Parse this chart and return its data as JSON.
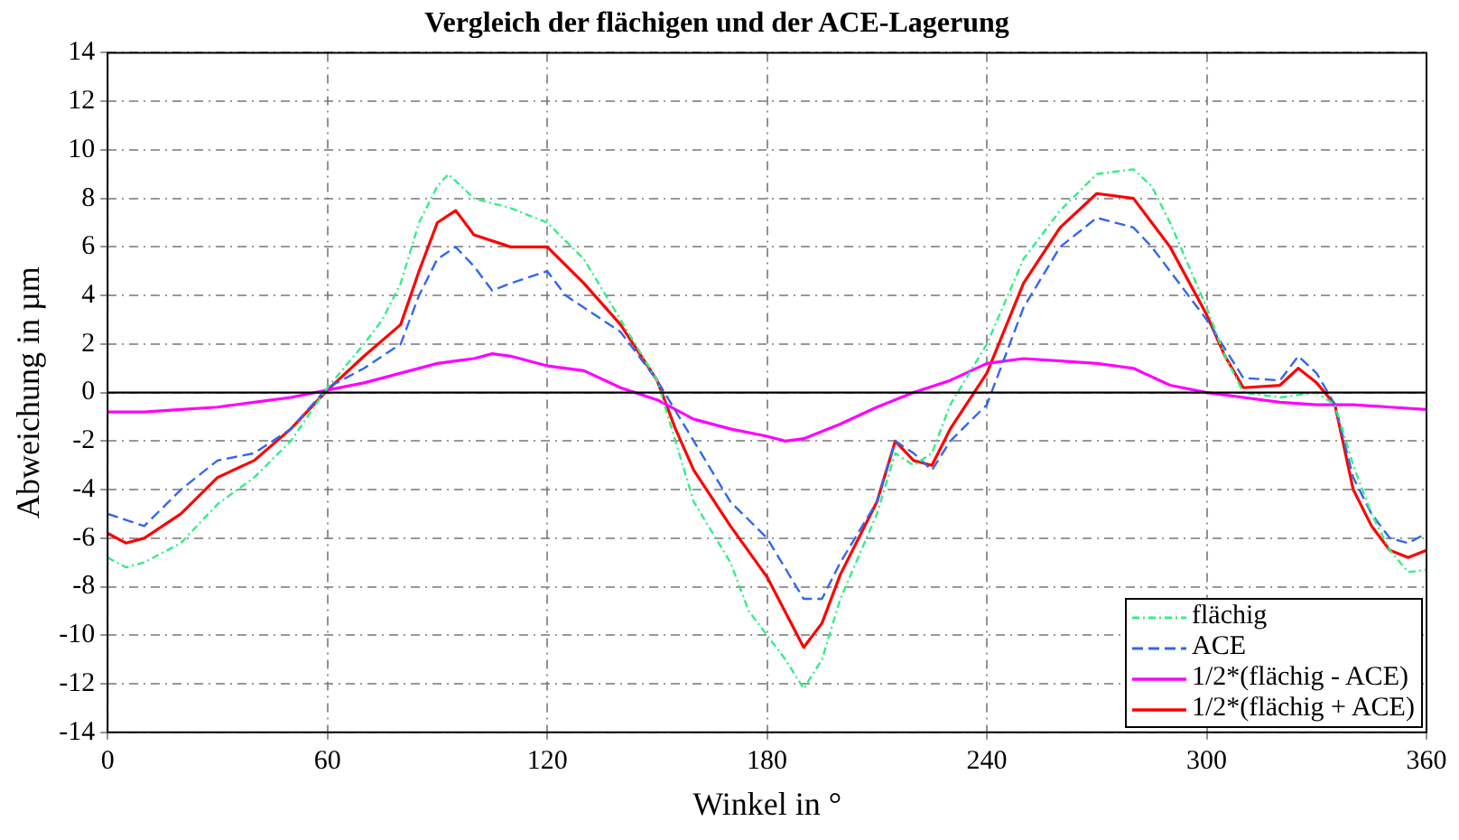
{
  "chart_data": {
    "type": "line",
    "title": "Vergleich der flächigen und der ACE-Lagerung",
    "xlabel": "Winkel in °",
    "ylabel": "Abweichung in µm",
    "xlim": [
      0,
      360
    ],
    "xticks": [
      0,
      60,
      120,
      180,
      240,
      300,
      360
    ],
    "ylim": [
      -14,
      14
    ],
    "yticks": [
      -14,
      -12,
      -10,
      -8,
      -6,
      -4,
      -2,
      0,
      2,
      4,
      6,
      8,
      10,
      12,
      14
    ],
    "grid": true,
    "legend": "bottom right",
    "marker": "none",
    "ref_lines": [
      {
        "axis": "y",
        "value": 0,
        "color": "#000000"
      }
    ],
    "series": [
      {
        "name": "flächig",
        "color": "#33ee88",
        "line_style": "dotted",
        "x": [
          0,
          5,
          10,
          20,
          30,
          40,
          50,
          60,
          70,
          75,
          80,
          85,
          90,
          93,
          100,
          110,
          120,
          130,
          140,
          150,
          155,
          160,
          170,
          175,
          180,
          185,
          190,
          195,
          200,
          210,
          215,
          220,
          225,
          230,
          240,
          250,
          260,
          270,
          280,
          285,
          290,
          300,
          305,
          310,
          320,
          330,
          335,
          340,
          345,
          350,
          355,
          360
        ],
        "values": [
          -6.8,
          -7.2,
          -7.0,
          -6.2,
          -4.6,
          -3.5,
          -2.0,
          0.2,
          2.0,
          3.0,
          4.5,
          7.0,
          8.5,
          9.0,
          8.0,
          7.6,
          7.0,
          5.5,
          3.0,
          0.5,
          -2.0,
          -4.5,
          -7.0,
          -9.0,
          -10.0,
          -11.0,
          -12.2,
          -11.0,
          -8.5,
          -5.0,
          -2.5,
          -3.0,
          -2.5,
          -0.5,
          2.0,
          5.5,
          7.5,
          9.0,
          9.2,
          8.5,
          7.0,
          3.5,
          1.5,
          0.0,
          -0.2,
          0.0,
          -0.5,
          -3.0,
          -5.0,
          -6.5,
          -7.4,
          -7.3
        ]
      },
      {
        "name": "ACE",
        "color": "#3366ee",
        "line_style": "dashed",
        "x": [
          0,
          10,
          20,
          30,
          40,
          50,
          60,
          70,
          80,
          85,
          90,
          95,
          100,
          105,
          110,
          120,
          125,
          130,
          140,
          145,
          150,
          160,
          170,
          180,
          190,
          195,
          200,
          210,
          215,
          220,
          225,
          230,
          240,
          250,
          260,
          270,
          280,
          285,
          290,
          300,
          305,
          310,
          320,
          325,
          330,
          335,
          340,
          345,
          350,
          355,
          360
        ],
        "values": [
          -5.0,
          -5.5,
          -4.0,
          -2.8,
          -2.5,
          -1.5,
          0.2,
          1.0,
          2.0,
          4.0,
          5.5,
          6.0,
          5.2,
          4.2,
          4.5,
          5.0,
          4.0,
          3.5,
          2.5,
          1.5,
          0.5,
          -2.0,
          -4.5,
          -6.0,
          -8.5,
          -8.5,
          -7.0,
          -4.5,
          -2.0,
          -2.5,
          -3.2,
          -2.0,
          -0.5,
          3.5,
          6.0,
          7.2,
          6.8,
          6.0,
          5.0,
          3.0,
          1.8,
          0.6,
          0.5,
          1.5,
          0.8,
          -0.5,
          -3.5,
          -5.0,
          -6.0,
          -6.2,
          -5.8
        ]
      },
      {
        "name": "1/2*(flächig - ACE)",
        "color": "#ff00ff",
        "line_style": "solid",
        "x": [
          0,
          10,
          20,
          30,
          40,
          50,
          60,
          70,
          80,
          90,
          100,
          105,
          110,
          120,
          130,
          140,
          150,
          160,
          170,
          180,
          185,
          190,
          200,
          210,
          220,
          230,
          240,
          250,
          260,
          270,
          280,
          290,
          300,
          310,
          320,
          330,
          340,
          350,
          360
        ],
        "values": [
          -0.8,
          -0.8,
          -0.7,
          -0.6,
          -0.4,
          -0.2,
          0.1,
          0.4,
          0.8,
          1.2,
          1.4,
          1.6,
          1.5,
          1.1,
          0.9,
          0.2,
          -0.3,
          -1.1,
          -1.5,
          -1.8,
          -2.0,
          -1.9,
          -1.3,
          -0.6,
          0.0,
          0.5,
          1.2,
          1.4,
          1.3,
          1.2,
          1.0,
          0.3,
          0.0,
          -0.2,
          -0.4,
          -0.5,
          -0.5,
          -0.6,
          -0.7
        ]
      },
      {
        "name": "1/2*(flächig + ACE)",
        "color": "#ff0000",
        "line_style": "solid",
        "x": [
          0,
          5,
          10,
          20,
          30,
          40,
          50,
          60,
          70,
          80,
          85,
          90,
          95,
          100,
          110,
          120,
          130,
          140,
          150,
          155,
          160,
          170,
          180,
          190,
          195,
          200,
          210,
          215,
          220,
          225,
          230,
          240,
          250,
          260,
          270,
          280,
          285,
          290,
          300,
          305,
          310,
          320,
          325,
          330,
          335,
          340,
          345,
          350,
          355,
          360
        ],
        "values": [
          -5.8,
          -6.2,
          -6.0,
          -5.0,
          -3.5,
          -2.8,
          -1.5,
          0.1,
          1.5,
          2.8,
          5.0,
          7.0,
          7.5,
          6.5,
          6.0,
          6.0,
          4.5,
          2.8,
          0.5,
          -1.5,
          -3.2,
          -5.5,
          -7.6,
          -10.5,
          -9.5,
          -7.5,
          -4.5,
          -2.0,
          -2.8,
          -3.0,
          -1.5,
          0.8,
          4.5,
          6.8,
          8.2,
          8.0,
          7.0,
          6.0,
          3.2,
          1.5,
          0.2,
          0.3,
          1.0,
          0.4,
          -0.5,
          -4.0,
          -5.5,
          -6.5,
          -6.8,
          -6.5
        ]
      }
    ]
  }
}
